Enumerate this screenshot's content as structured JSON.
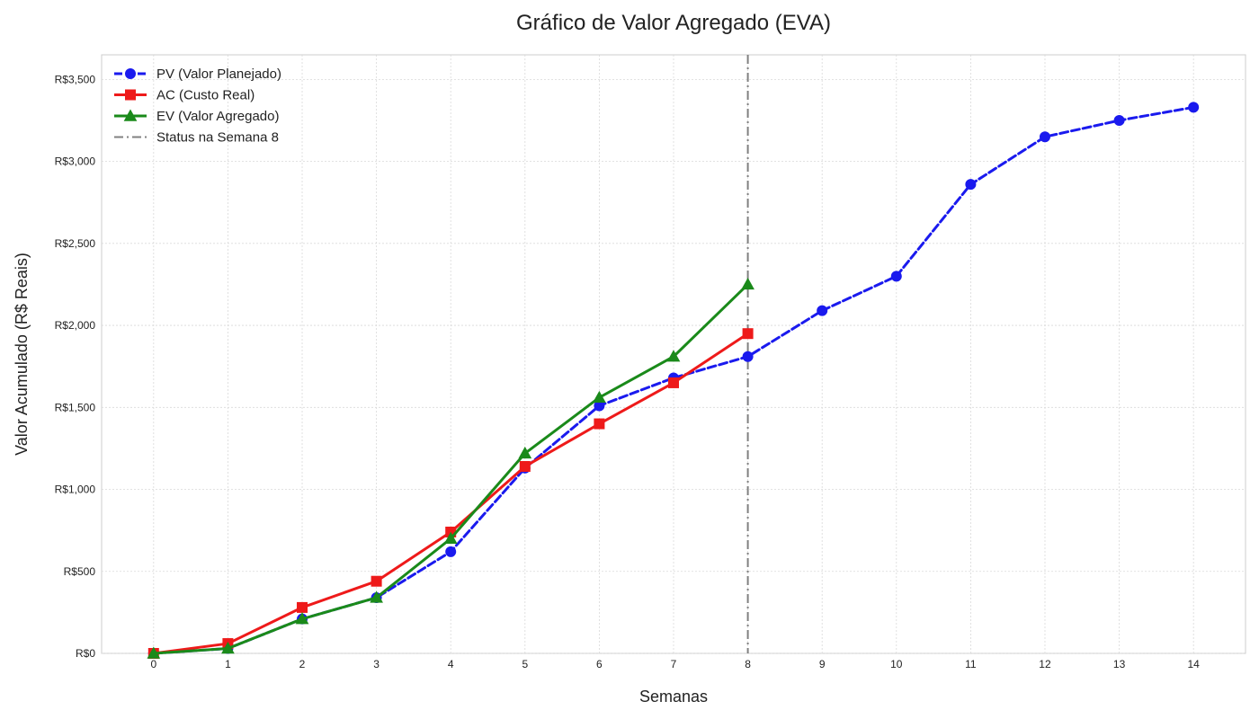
{
  "chart_data": {
    "type": "line",
    "title": "Gráfico de Valor Agregado (EVA)",
    "xlabel": "Semanas",
    "ylabel": "Valor Acumulado (R$ Reais)",
    "xlim": [
      -0.7,
      14.7
    ],
    "ylim": [
      0,
      3650
    ],
    "x_ticks": [
      0,
      1,
      2,
      3,
      4,
      5,
      6,
      7,
      8,
      9,
      10,
      11,
      12,
      13,
      14
    ],
    "x_tick_labels": [
      "0",
      "1",
      "2",
      "3",
      "4",
      "5",
      "6",
      "7",
      "8",
      "9",
      "10",
      "11",
      "12",
      "13",
      "14"
    ],
    "y_ticks": [
      0,
      500,
      1000,
      1500,
      2000,
      2500,
      3000,
      3500
    ],
    "y_tick_labels": [
      "R$0",
      "R$500",
      "R$1,000",
      "R$1,500",
      "R$2,000",
      "R$2,500",
      "R$3,000",
      "R$3,500"
    ],
    "grid": true,
    "legend_position": "top-left",
    "series": [
      {
        "name": "PV (Valor Planejado)",
        "color": "#1a1aee",
        "line_style": "dashed",
        "marker": "circle",
        "x": [
          0,
          1,
          2,
          3,
          4,
          5,
          6,
          7,
          8,
          9,
          10,
          11,
          12,
          13,
          14
        ],
        "values": [
          0,
          30,
          210,
          340,
          620,
          1130,
          1510,
          1680,
          1810,
          2090,
          2300,
          2860,
          3150,
          3250,
          3330
        ]
      },
      {
        "name": "AC (Custo Real)",
        "color": "#ee1a1a",
        "line_style": "solid",
        "marker": "square",
        "x": [
          0,
          1,
          2,
          3,
          4,
          5,
          6,
          7,
          8
        ],
        "values": [
          0,
          60,
          280,
          440,
          740,
          1140,
          1400,
          1650,
          1950
        ]
      },
      {
        "name": "EV (Valor Agregado)",
        "color": "#1a8a1a",
        "line_style": "solid",
        "marker": "triangle",
        "x": [
          0,
          1,
          2,
          3,
          4,
          5,
          6,
          7,
          8
        ],
        "values": [
          0,
          30,
          210,
          340,
          700,
          1220,
          1560,
          1810,
          2250
        ]
      }
    ],
    "reference_lines": [
      {
        "name": "Status na Semana 8",
        "x": 8,
        "color": "#808080",
        "line_style": "dashdot"
      }
    ]
  }
}
